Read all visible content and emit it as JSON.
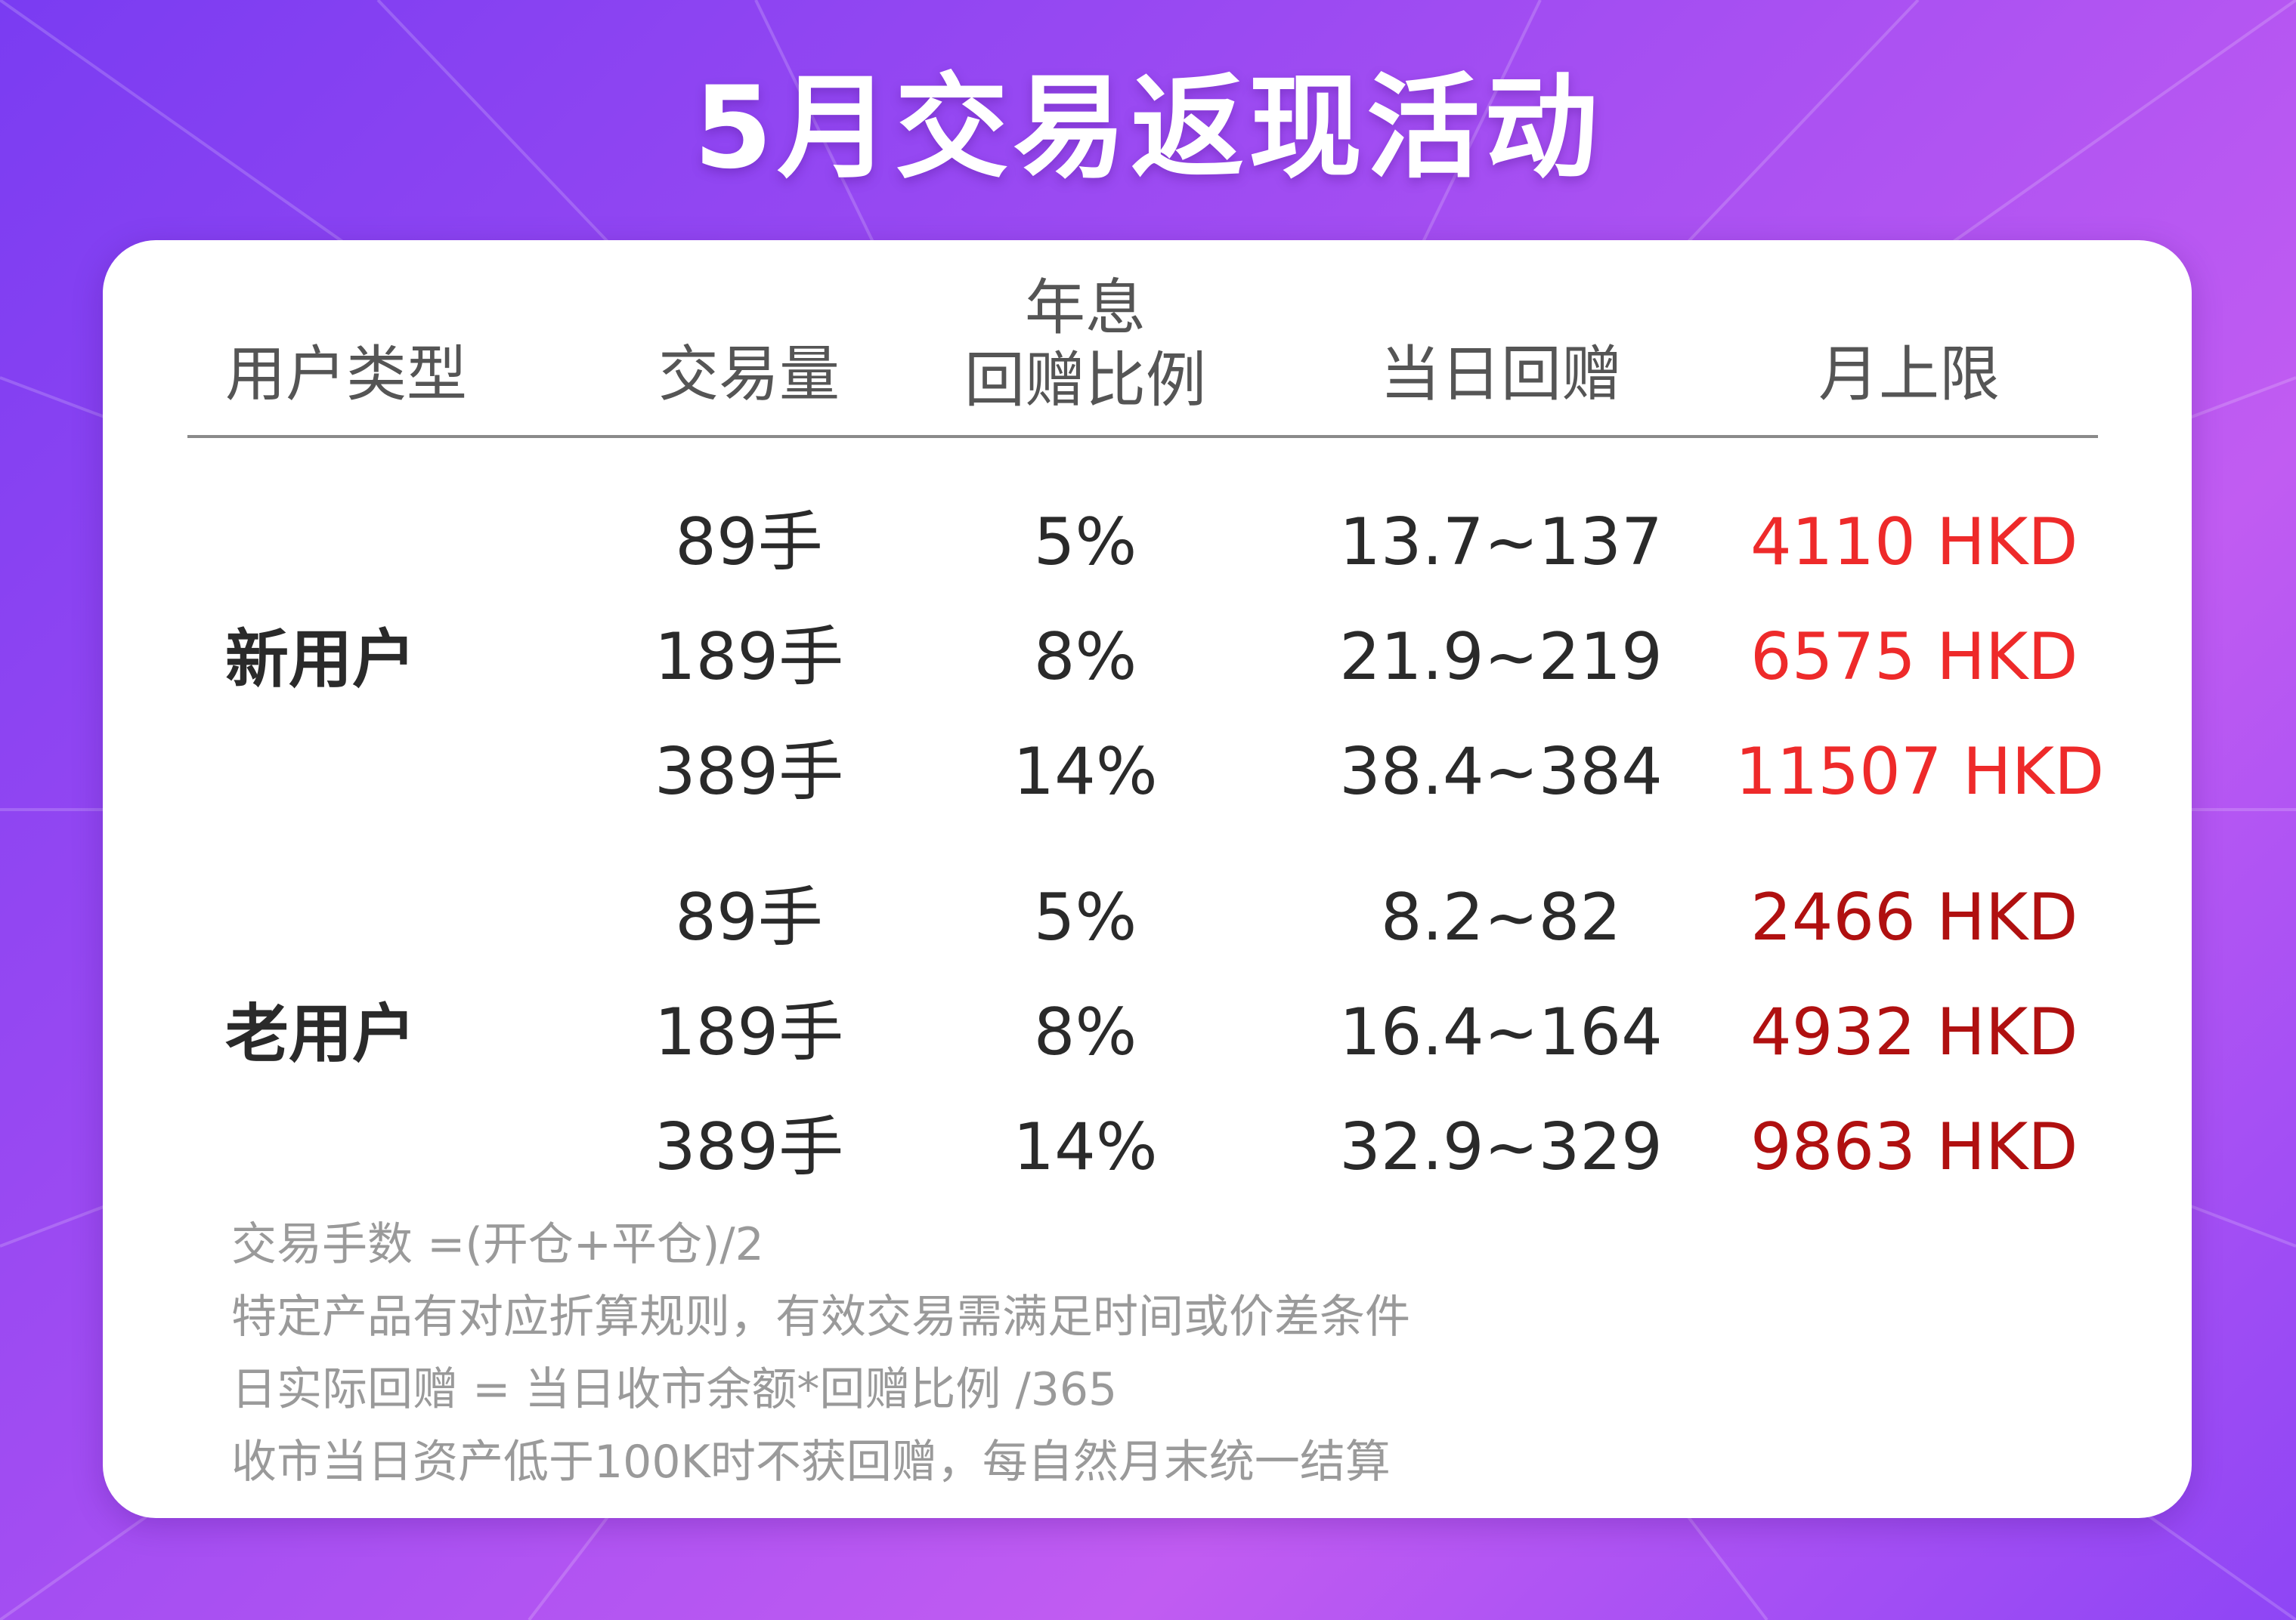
{
  "title": "5月交易返现活动",
  "colors": {
    "new_user_cap": "#ee2a2a",
    "old_user_cap": "#b01010",
    "background_from": "#7a3cf2",
    "background_to": "#c15cf2"
  },
  "table": {
    "headers": {
      "user_type": "用户类型",
      "volume": "交易量",
      "rate_line1": "年息",
      "rate_line2": "回赠比例",
      "daily": "当日回赠",
      "monthly_cap": "月上限"
    },
    "groups": [
      {
        "label": "新用户",
        "rows": [
          {
            "volume": "89手",
            "rate": "5%",
            "daily": "13.7~137",
            "cap": "4110 HKD"
          },
          {
            "volume": "189手",
            "rate": "8%",
            "daily": "21.9~219",
            "cap": "6575 HKD"
          },
          {
            "volume": "389手",
            "rate": "14%",
            "daily": "38.4~384",
            "cap": "11507 HKD"
          }
        ]
      },
      {
        "label": "老用户",
        "rows": [
          {
            "volume": "89手",
            "rate": "5%",
            "daily": "8.2~82",
            "cap": "2466 HKD"
          },
          {
            "volume": "189手",
            "rate": "8%",
            "daily": "16.4~164",
            "cap": "4932 HKD"
          },
          {
            "volume": "389手",
            "rate": "14%",
            "daily": "32.9~329",
            "cap": "9863 HKD"
          }
        ]
      }
    ]
  },
  "notes": [
    "交易手数 =(开仓+平仓)/2",
    "特定产品有对应折算规则，有效交易需满足时间或价差条件",
    "日实际回赠 = 当日收市余额*回赠比例 /365",
    "收市当日资产低于100K时不获回赠，每自然月末统一结算"
  ]
}
